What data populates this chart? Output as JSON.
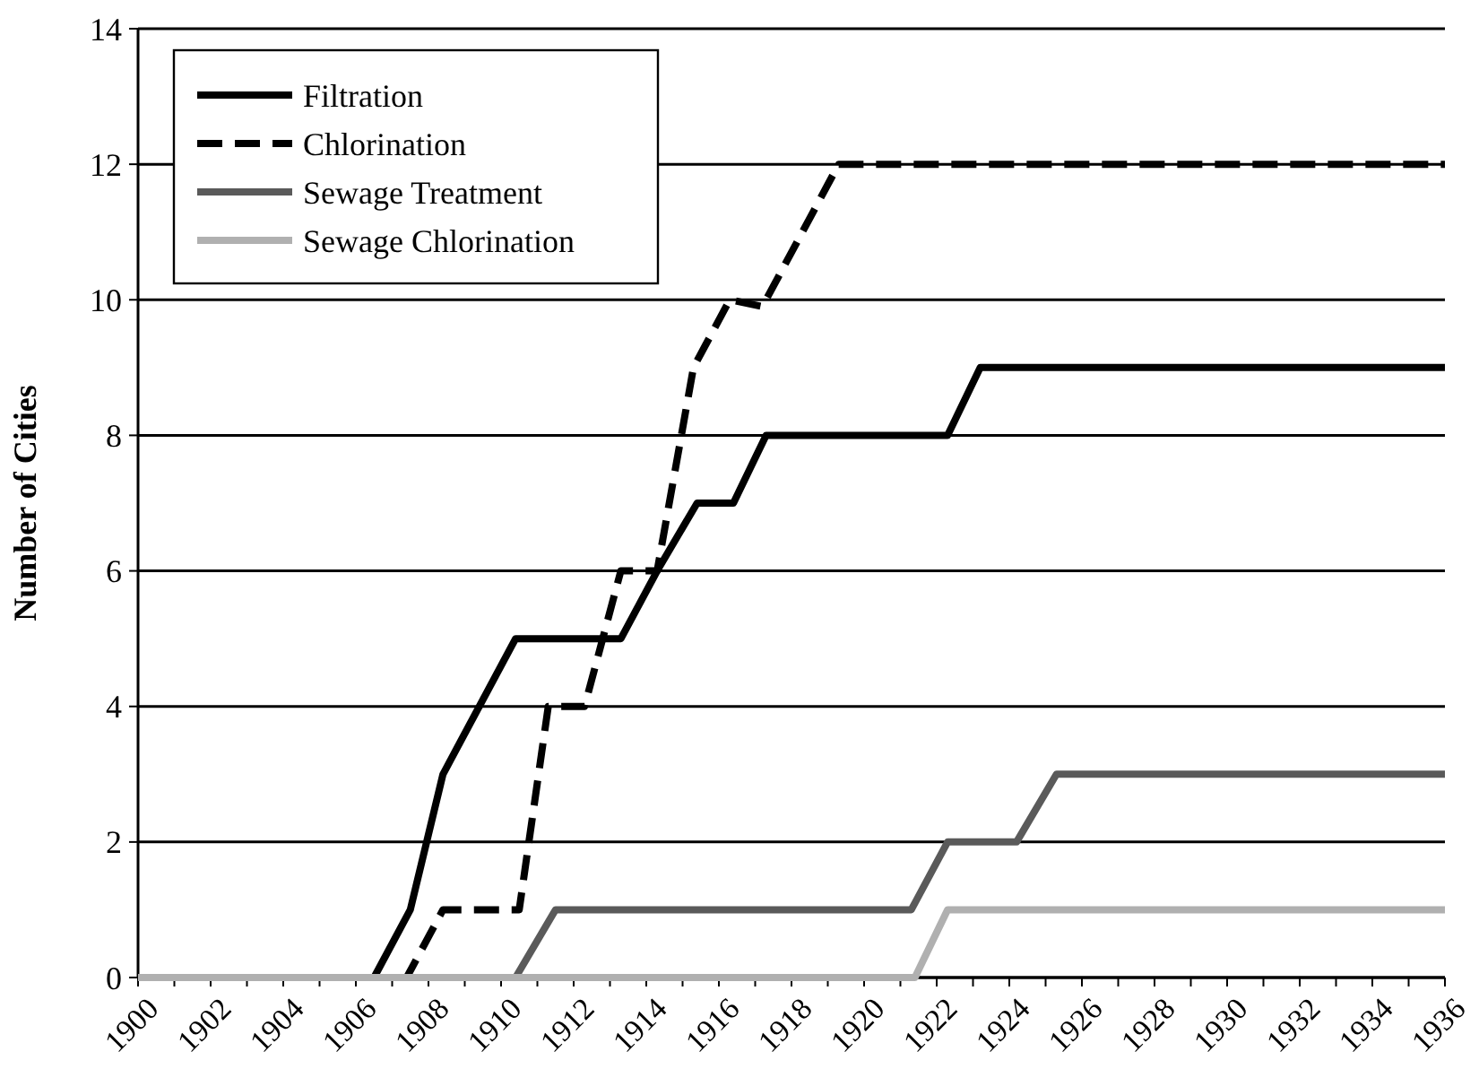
{
  "chart_data": {
    "type": "line",
    "ylabel": "Number of Cities",
    "xlim": [
      1900,
      1936
    ],
    "ylim": [
      0,
      14
    ],
    "yticks": [
      0,
      2,
      4,
      6,
      8,
      10,
      12,
      14
    ],
    "xticks": [
      1900,
      {
        "value": 1901,
        "label": null
      },
      1902,
      {
        "value": 1903,
        "label": null
      },
      1904,
      {
        "value": 1905,
        "label": null
      },
      1906,
      {
        "value": 1907,
        "label": null
      },
      1908,
      {
        "value": 1909,
        "label": null
      },
      1910,
      {
        "value": 1911,
        "label": null
      },
      1912,
      {
        "value": 1913,
        "label": null
      },
      1914,
      {
        "value": 1915,
        "label": null
      },
      1916,
      {
        "value": 1917,
        "label": null
      },
      1918,
      {
        "value": 1919,
        "label": null
      },
      1920,
      {
        "value": 1921,
        "label": null
      },
      1922,
      {
        "value": 1923,
        "label": null
      },
      1924,
      {
        "value": 1925,
        "label": null
      },
      1926,
      {
        "value": 1927,
        "label": null
      },
      1928,
      {
        "value": 1929,
        "label": null
      },
      1930,
      {
        "value": 1931,
        "label": null
      },
      1932,
      {
        "value": 1933,
        "label": null
      },
      1934,
      {
        "value": 1935,
        "label": null
      },
      1936
    ],
    "grid": "y",
    "legend": "top left",
    "series": [
      {
        "name": "Filtration",
        "color": "#000000",
        "line_style": "solid",
        "x": [
          1900,
          1906.5,
          1907.5,
          1908.4,
          1910.4,
          1913.3,
          1914.3,
          1915.4,
          1916.4,
          1917.3,
          1922.3,
          1923.2,
          1936
        ],
        "values": [
          0,
          0,
          1,
          3,
          5,
          5,
          6,
          7,
          7,
          8,
          8,
          9,
          9
        ]
      },
      {
        "name": "Chlorination",
        "color": "#000000",
        "line_style": "dashed",
        "x": [
          1900,
          1907.4,
          1908.4,
          1910.5,
          1911.3,
          1912.3,
          1913.3,
          1914.3,
          1915.3,
          1916.3,
          1917.2,
          1919.3,
          1936
        ],
        "values": [
          0,
          0,
          1,
          1,
          4,
          4,
          6,
          6,
          9,
          10,
          9.9,
          12,
          12
        ]
      },
      {
        "name": "Sewage Treatment",
        "color": "#5a5a5a",
        "line_style": "solid",
        "x": [
          1900,
          1910.4,
          1911.5,
          1921.3,
          1922.3,
          1924.2,
          1925.3,
          1936
        ],
        "values": [
          0,
          0,
          1,
          1,
          2,
          2,
          3,
          3
        ]
      },
      {
        "name": "Sewage Chlorination",
        "color": "#b0b0b0",
        "line_style": "solid",
        "x": [
          1900,
          1921.4,
          1922.3,
          1936
        ],
        "values": [
          0,
          0,
          1,
          1
        ]
      }
    ]
  }
}
